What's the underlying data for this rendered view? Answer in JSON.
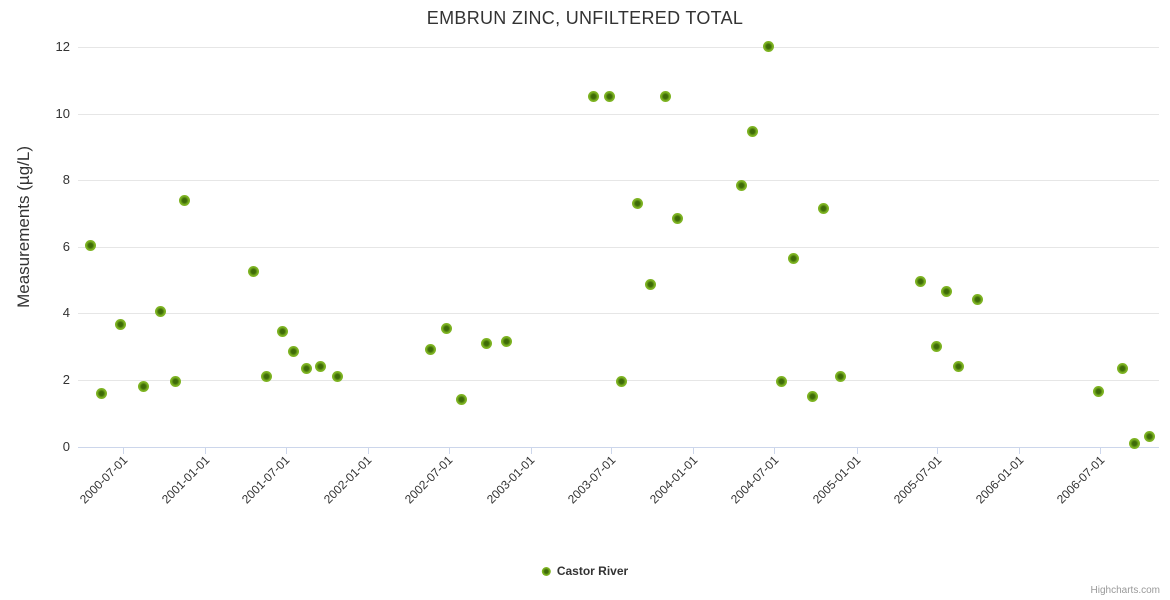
{
  "credits": {
    "label": "Highcharts.com"
  },
  "colors": {
    "marker_outer": "#86b529",
    "marker_mid": "#7cb321",
    "marker_inner": "#3e6b08",
    "grid": "#e6e6e6",
    "axis_line": "#ccd6eb",
    "text": "#333333",
    "credits": "#999999",
    "background": "#ffffff"
  },
  "chart_data": {
    "type": "scatter",
    "title": "EMBRUN ZINC, UNFILTERED TOTAL",
    "xlabel": "",
    "ylabel": "Measurements (µg/L)",
    "ylim": [
      0,
      12
    ],
    "y_ticks": [
      0,
      2,
      4,
      6,
      8,
      10,
      12
    ],
    "x_ticks": [
      "2000-07-01",
      "2001-01-01",
      "2001-07-01",
      "2002-01-01",
      "2002-07-01",
      "2003-01-01",
      "2003-07-01",
      "2004-01-01",
      "2004-07-01",
      "2005-01-01",
      "2005-07-01",
      "2006-01-01",
      "2006-07-01"
    ],
    "x_axis_type": "datetime",
    "x_range_visible": [
      "2000-03-22",
      "2006-11-09"
    ],
    "grid": true,
    "legend_position": "bottom-center",
    "series": [
      {
        "name": "Castor River",
        "points": [
          {
            "date": "2000-04-20",
            "value": 6.05
          },
          {
            "date": "2000-05-14",
            "value": 1.6
          },
          {
            "date": "2000-06-25",
            "value": 3.65
          },
          {
            "date": "2000-08-17",
            "value": 1.8
          },
          {
            "date": "2000-09-22",
            "value": 4.05
          },
          {
            "date": "2000-10-26",
            "value": 1.95
          },
          {
            "date": "2000-11-15",
            "value": 7.4
          },
          {
            "date": "2001-04-20",
            "value": 5.25
          },
          {
            "date": "2001-05-18",
            "value": 2.1
          },
          {
            "date": "2001-06-23",
            "value": 3.45
          },
          {
            "date": "2001-07-19",
            "value": 2.85
          },
          {
            "date": "2001-08-16",
            "value": 2.35
          },
          {
            "date": "2001-09-18",
            "value": 2.4
          },
          {
            "date": "2001-10-26",
            "value": 2.1
          },
          {
            "date": "2002-05-22",
            "value": 2.9
          },
          {
            "date": "2002-06-27",
            "value": 3.55
          },
          {
            "date": "2002-07-31",
            "value": 1.4
          },
          {
            "date": "2002-09-25",
            "value": 3.1
          },
          {
            "date": "2002-11-07",
            "value": 3.15
          },
          {
            "date": "2003-05-22",
            "value": 10.5
          },
          {
            "date": "2003-06-26",
            "value": 10.5
          },
          {
            "date": "2003-07-25",
            "value": 1.95
          },
          {
            "date": "2003-08-29",
            "value": 7.3
          },
          {
            "date": "2003-09-26",
            "value": 4.85
          },
          {
            "date": "2003-10-30",
            "value": 10.5
          },
          {
            "date": "2003-11-26",
            "value": 6.85
          },
          {
            "date": "2004-04-17",
            "value": 7.85
          },
          {
            "date": "2004-05-12",
            "value": 9.45
          },
          {
            "date": "2004-06-17",
            "value": 12.0
          },
          {
            "date": "2004-07-17",
            "value": 1.95
          },
          {
            "date": "2004-08-13",
            "value": 5.65
          },
          {
            "date": "2004-09-25",
            "value": 1.5
          },
          {
            "date": "2004-10-20",
            "value": 7.15
          },
          {
            "date": "2004-11-26",
            "value": 2.1
          },
          {
            "date": "2005-05-25",
            "value": 4.95
          },
          {
            "date": "2005-06-30",
            "value": 3.0
          },
          {
            "date": "2005-07-21",
            "value": 4.65
          },
          {
            "date": "2005-08-18",
            "value": 2.4
          },
          {
            "date": "2005-09-30",
            "value": 4.4
          },
          {
            "date": "2006-06-27",
            "value": 1.65
          },
          {
            "date": "2006-08-21",
            "value": 2.35
          },
          {
            "date": "2006-09-17",
            "value": 0.1
          },
          {
            "date": "2006-10-19",
            "value": 0.3
          }
        ]
      }
    ]
  }
}
